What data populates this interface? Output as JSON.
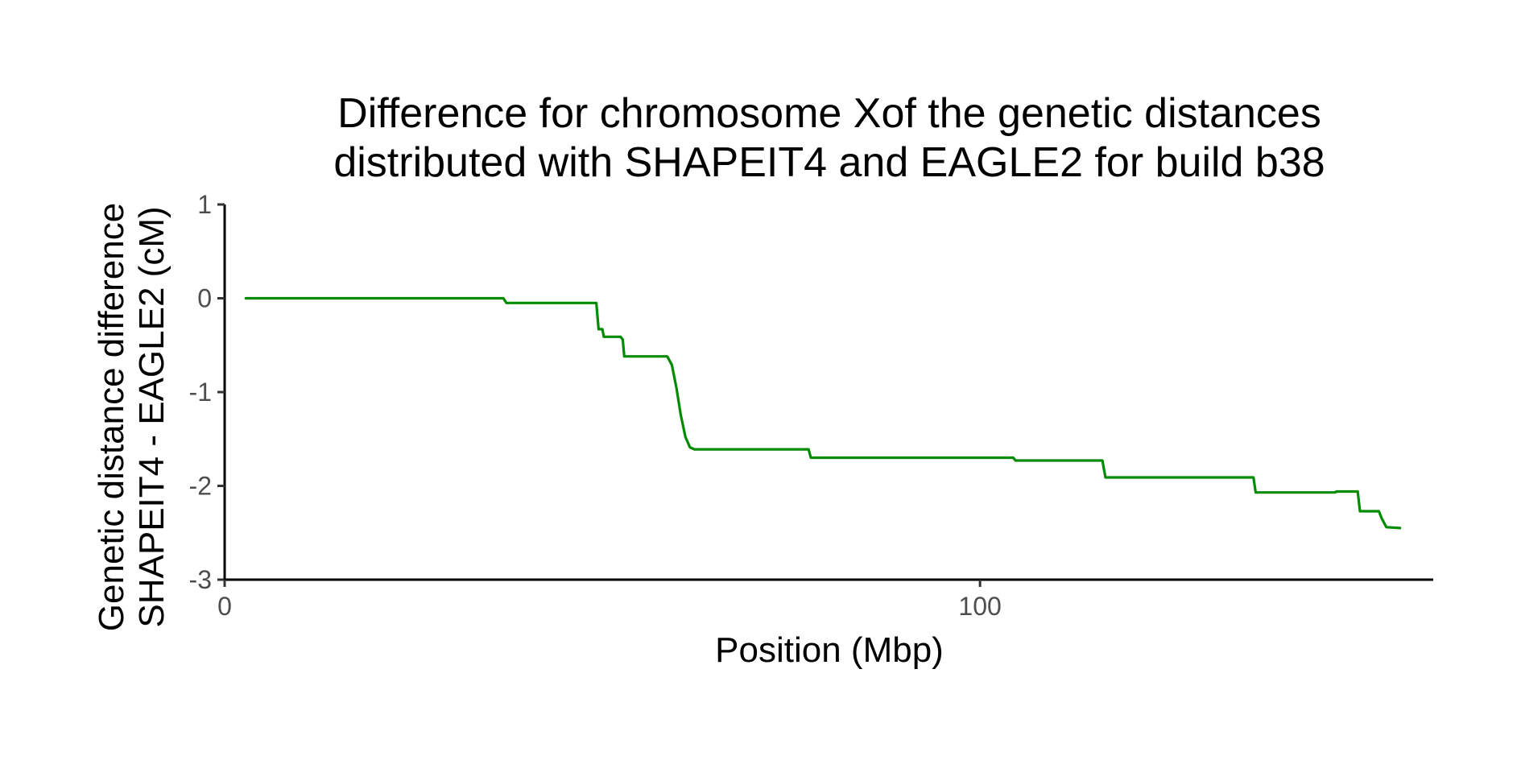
{
  "chart_data": {
    "type": "line",
    "title": [
      "Difference for chromosome Xof the genetic distances",
      "distributed with SHAPEIT4 and EAGLE2 for build b38"
    ],
    "xlabel": "Position (Mbp)",
    "ylabel": [
      "Genetic distance difference",
      "SHAPEIT4 - EAGLE2 (cM)"
    ],
    "xlim": [
      0,
      160
    ],
    "ylim": [
      -3,
      1
    ],
    "x_ticks": [
      0,
      100
    ],
    "x_tick_labels": [
      "0",
      "100"
    ],
    "y_ticks": [
      1,
      0,
      -1,
      -2,
      -3
    ],
    "y_tick_labels": [
      "1",
      "0",
      "-1",
      "-2",
      "-3"
    ],
    "grid": false,
    "legend": "none",
    "colors": {
      "series": "#008b00"
    },
    "series": [
      {
        "color": "#008b00",
        "x": [
          2.8,
          36.9,
          37.3,
          47.5,
          49.2,
          49.5,
          50.0,
          50.2,
          52.4,
          52.7,
          52.9,
          58.6,
          59.2,
          59.8,
          60.4,
          61.0,
          61.6,
          62.2,
          62.6,
          75.5,
          77.3,
          77.6,
          104.4,
          104.7,
          116.2,
          116.6,
          130.0,
          136.2,
          136.5,
          147.0,
          147.2,
          150.0,
          150.3,
          152.8,
          153.2,
          153.8,
          155.6
        ],
        "y": [
          0.0,
          0.0,
          -0.05,
          -0.05,
          -0.05,
          -0.33,
          -0.33,
          -0.41,
          -0.41,
          -0.44,
          -0.62,
          -0.62,
          -0.71,
          -0.95,
          -1.25,
          -1.48,
          -1.59,
          -1.61,
          -1.61,
          -1.61,
          -1.61,
          -1.7,
          -1.7,
          -1.73,
          -1.73,
          -1.91,
          -1.91,
          -1.91,
          -2.07,
          -2.07,
          -2.06,
          -2.06,
          -2.27,
          -2.27,
          -2.35,
          -2.44,
          -2.45
        ]
      }
    ]
  }
}
